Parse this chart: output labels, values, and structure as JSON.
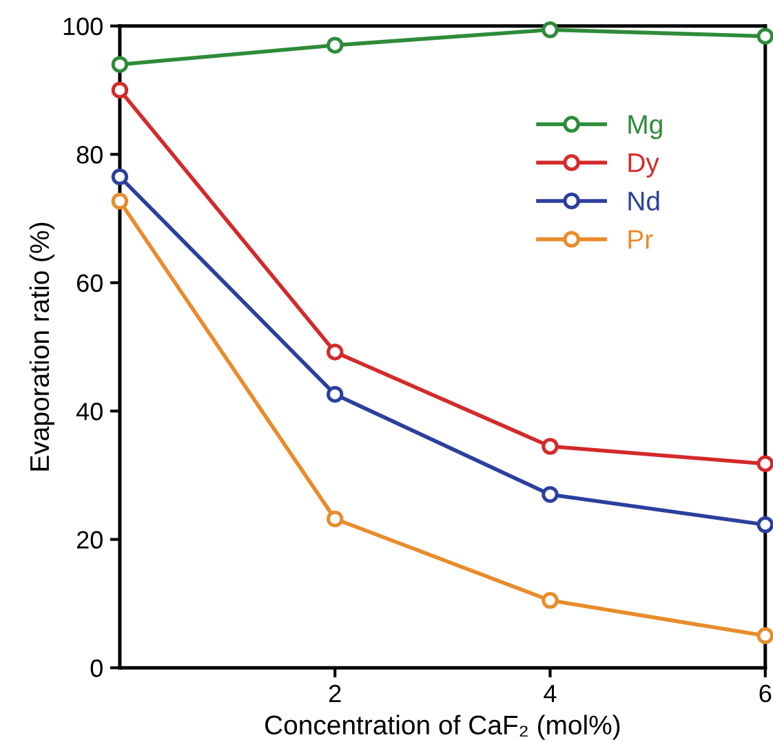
{
  "chart_data": {
    "type": "line",
    "xlabel": "Concentration of CaF₂ (mol%)",
    "ylabel": "Evaporation ratio (%)",
    "x": [
      0,
      2,
      4,
      6
    ],
    "xlim": [
      0,
      6
    ],
    "xticks": [
      2,
      4,
      6
    ],
    "ylim": [
      0,
      100
    ],
    "yticks": [
      0,
      20,
      40,
      60,
      80,
      100
    ],
    "marker": "circle",
    "line_style": "solid",
    "grid": false,
    "legend": "top right",
    "series": [
      {
        "name": "Mg",
        "color": "#2e8b3a",
        "values": [
          94,
          97,
          99.4,
          98.4
        ]
      },
      {
        "name": "Dy",
        "color": "#d42a2a",
        "values": [
          90,
          49.2,
          34.5,
          31.8
        ]
      },
      {
        "name": "Nd",
        "color": "#2b3f9e",
        "values": [
          76.5,
          42.6,
          27,
          22.3
        ]
      },
      {
        "name": "Pr",
        "color": "#e88c2a",
        "values": [
          72.7,
          23.2,
          10.5,
          5
        ]
      }
    ]
  }
}
